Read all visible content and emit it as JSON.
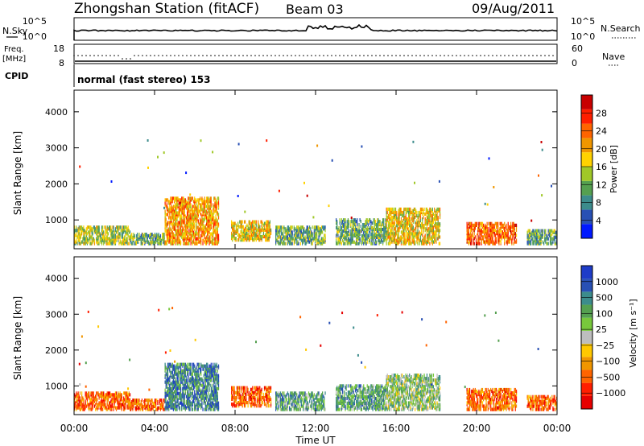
{
  "header": {
    "station": "Zhongshan Station (fitACF)",
    "beam": "Beam 03",
    "date": "09/Aug/2011"
  },
  "strip": {
    "nsky_label": "N.Sky",
    "nsky_top": "10^5",
    "nsky_bottom": "10^0",
    "nsearch_label": "N.Search",
    "nsearch_top": "10^5",
    "nsearch_bottom": "10^0",
    "freq_label_1": "Freq.",
    "freq_label_2": "[MHz]",
    "freq_top": "18",
    "freq_bottom": "8",
    "nave_label": "Nave",
    "nave_top": "60",
    "nave_bottom": "0",
    "cpid_label": "CPID",
    "cpid_text": "normal (fast stereo) 153"
  },
  "chart_data": [
    {
      "type": "heatmap",
      "parameter": "power",
      "ylabel": "Slant Range [km]",
      "xlabel": "Time UT",
      "x_ticks": [
        "00:00",
        "04:00",
        "08:00",
        "12:00",
        "16:00",
        "20:00",
        "00:00"
      ],
      "y_ticks": [
        1000,
        2000,
        3000,
        4000
      ],
      "ylim": [
        200,
        4600
      ],
      "xlim_hours": [
        0,
        24
      ],
      "colorbar": {
        "label": "Power [dB]",
        "ticks": [
          "4",
          "8",
          "12",
          "16",
          "20",
          "24",
          "28"
        ],
        "colors": [
          "#0019ff",
          "#2850b4",
          "#3c8c8c",
          "#55a050",
          "#a0c828",
          "#ffd200",
          "#f09600",
          "#ff6400",
          "#ff1e00",
          "#c80000"
        ]
      },
      "regions": [
        {
          "t": [
            0.0,
            2.8
          ],
          "r": [
            300,
            800
          ],
          "level": 4
        },
        {
          "t": [
            2.8,
            4.5
          ],
          "r": [
            300,
            600
          ],
          "level": 3
        },
        {
          "t": [
            4.5,
            7.2
          ],
          "r": [
            300,
            1600
          ],
          "level": 6
        },
        {
          "t": [
            7.8,
            9.8
          ],
          "r": [
            400,
            950
          ],
          "level": 5
        },
        {
          "t": [
            10.0,
            12.5
          ],
          "r": [
            300,
            800
          ],
          "level": 3
        },
        {
          "t": [
            13.0,
            15.5
          ],
          "r": [
            300,
            1000
          ],
          "level": 3
        },
        {
          "t": [
            15.5,
            18.2
          ],
          "r": [
            300,
            1300
          ],
          "level": 5
        },
        {
          "t": [
            19.5,
            22.0
          ],
          "r": [
            300,
            900
          ],
          "level": 7
        },
        {
          "t": [
            22.5,
            24.0
          ],
          "r": [
            300,
            700
          ],
          "level": 3
        }
      ]
    },
    {
      "type": "heatmap",
      "parameter": "velocity",
      "ylabel": "Slant Range [km]",
      "xlabel": "Time UT",
      "x_ticks": [
        "00:00",
        "04:00",
        "08:00",
        "12:00",
        "16:00",
        "20:00",
        "00:00"
      ],
      "y_ticks": [
        1000,
        2000,
        3000,
        4000
      ],
      "ylim": [
        200,
        4600
      ],
      "xlim_hours": [
        0,
        24
      ],
      "colorbar": {
        "label": "Velocity [m s⁻¹]",
        "ticks": [
          "1000",
          "500",
          "100",
          "25",
          "−25",
          "−100",
          "−500",
          "−1000"
        ],
        "colors": [
          "#1e3cc8",
          "#2850b4",
          "#3c8c8c",
          "#55a050",
          "#78c83c",
          "#bebebe",
          "#ffc800",
          "#f09600",
          "#ff6400",
          "#ff1e00",
          "#e60000"
        ]
      },
      "regions": [
        {
          "t": [
            0.0,
            2.8
          ],
          "r": [
            300,
            800
          ],
          "level": 8
        },
        {
          "t": [
            2.8,
            4.5
          ],
          "r": [
            300,
            600
          ],
          "level": 8
        },
        {
          "t": [
            4.5,
            7.2
          ],
          "r": [
            300,
            1600
          ],
          "level": 2
        },
        {
          "t": [
            7.8,
            9.8
          ],
          "r": [
            400,
            950
          ],
          "level": 8
        },
        {
          "t": [
            10.0,
            12.5
          ],
          "r": [
            300,
            800
          ],
          "level": 3
        },
        {
          "t": [
            13.0,
            15.5
          ],
          "r": [
            300,
            1000
          ],
          "level": 3
        },
        {
          "t": [
            15.5,
            18.2
          ],
          "r": [
            300,
            1300
          ],
          "level": 4
        },
        {
          "t": [
            19.5,
            22.0
          ],
          "r": [
            300,
            900
          ],
          "level": 8
        },
        {
          "t": [
            22.5,
            24.0
          ],
          "r": [
            300,
            700
          ],
          "level": 8
        }
      ]
    }
  ]
}
